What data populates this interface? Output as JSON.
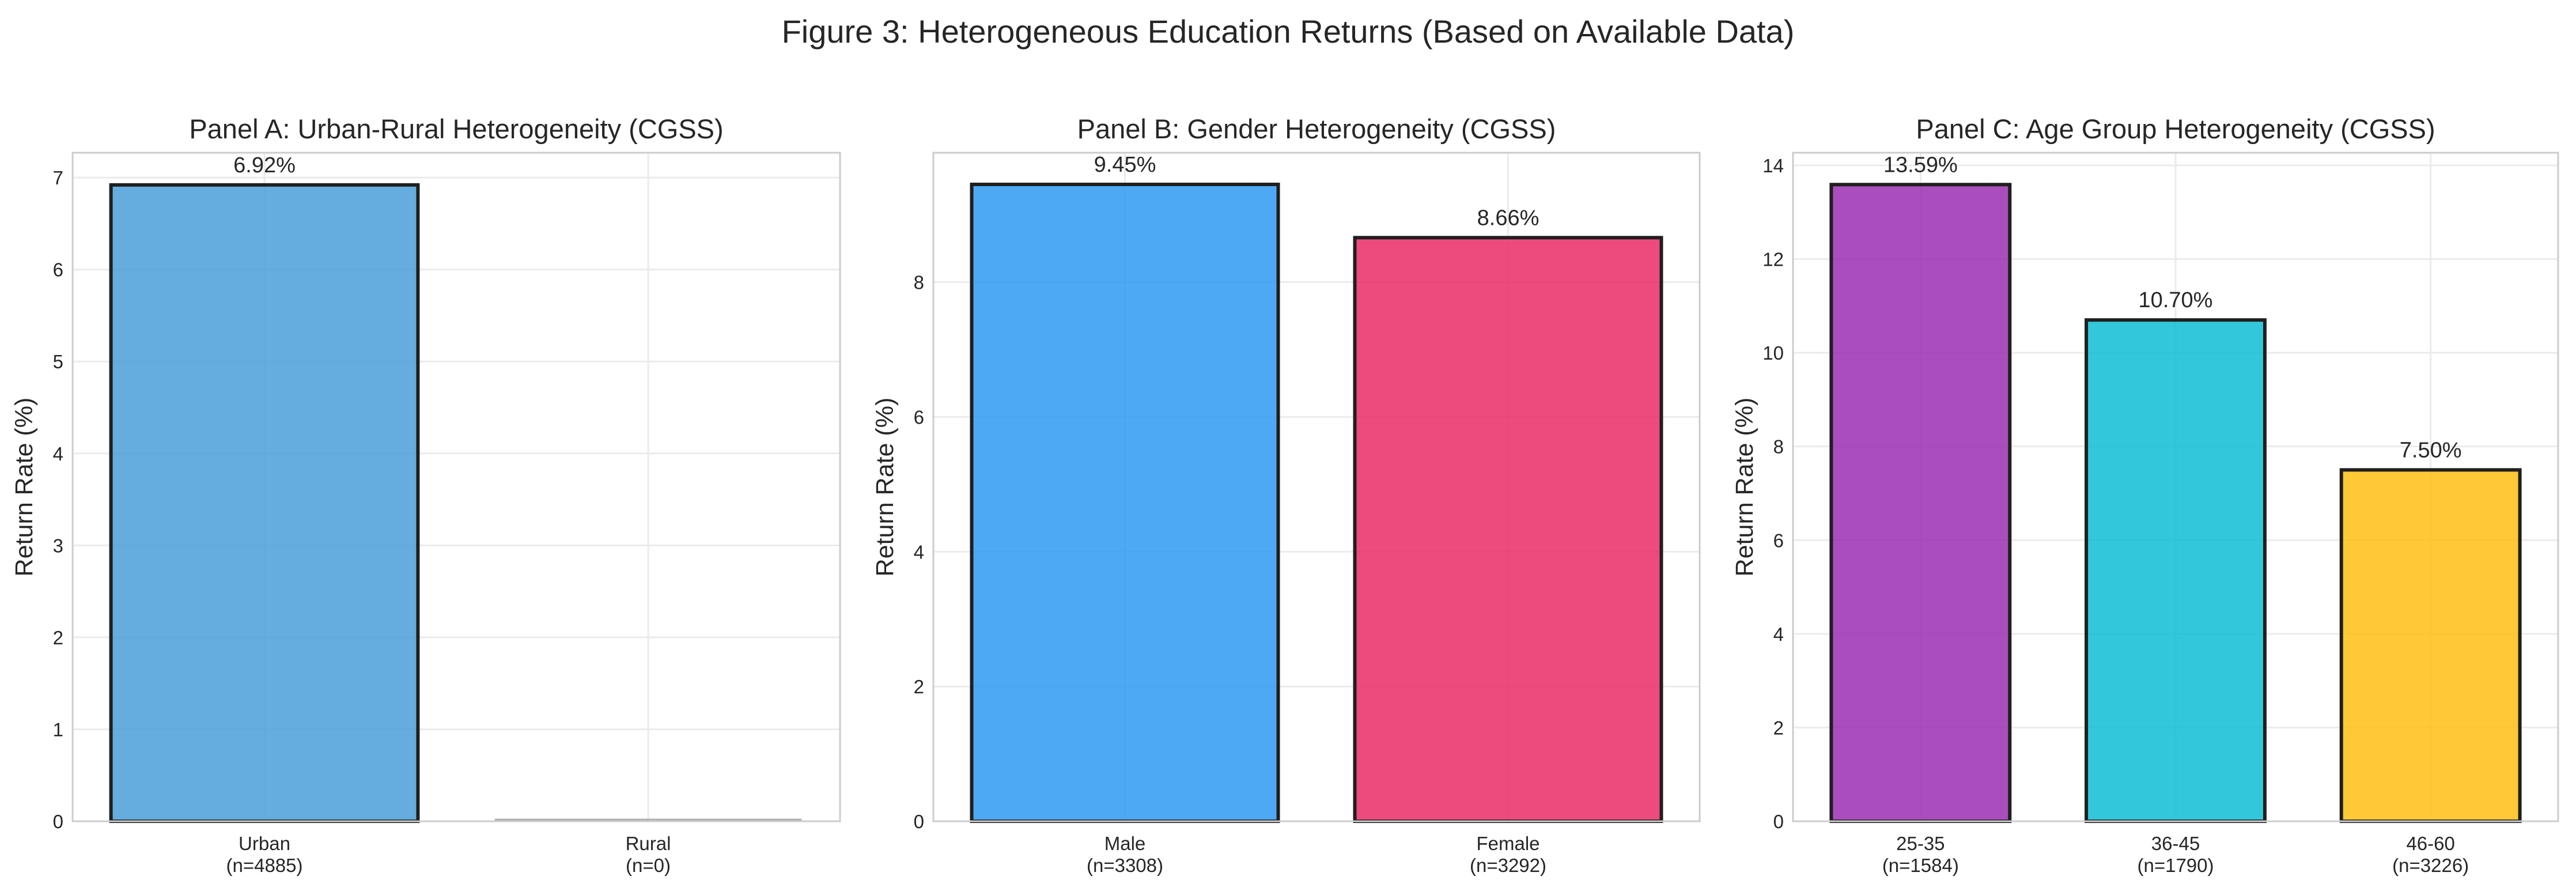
{
  "figure_title": "Figure 3: Heterogeneous Education Returns (Based on Available Data)",
  "chart_data": [
    {
      "type": "bar",
      "title": "Panel A: Urban-Rural Heterogeneity (CGSS)",
      "ylabel": "Return Rate (%)",
      "xlabel": "",
      "ylim": [
        0,
        7.27
      ],
      "yticks": [
        0,
        1,
        2,
        3,
        4,
        5,
        6,
        7
      ],
      "grid": true,
      "categories": [
        "Urban",
        "Rural"
      ],
      "sample_sizes": [
        "(n=4885)",
        "(n=0)"
      ],
      "values": [
        6.92,
        0
      ],
      "data_labels": [
        "6.92%",
        ""
      ],
      "colors": [
        "#4a9fd8",
        "#b0b0b0"
      ]
    },
    {
      "type": "bar",
      "title": "Panel B: Gender Heterogeneity (CGSS)",
      "ylabel": "Return Rate (%)",
      "xlabel": "",
      "ylim": [
        0,
        9.92
      ],
      "yticks": [
        0,
        2,
        4,
        6,
        8
      ],
      "grid": true,
      "categories": [
        "Male",
        "Female"
      ],
      "sample_sizes": [
        "(n=3308)",
        "(n=3292)"
      ],
      "values": [
        9.45,
        8.66
      ],
      "data_labels": [
        "9.45%",
        "8.66%"
      ],
      "colors": [
        "#2f9af2",
        "#ea2c66"
      ]
    },
    {
      "type": "bar",
      "title": "Panel C: Age Group Heterogeneity (CGSS)",
      "ylabel": "Return Rate (%)",
      "xlabel": "",
      "ylim": [
        0,
        14.27
      ],
      "yticks": [
        0,
        2,
        4,
        6,
        8,
        10,
        12,
        14
      ],
      "grid": true,
      "categories": [
        "25-35",
        "36-45",
        "46-60"
      ],
      "sample_sizes": [
        "(n=1584)",
        "(n=1790)",
        "(n=3226)"
      ],
      "values": [
        13.59,
        10.7,
        7.5
      ],
      "data_labels": [
        "13.59%",
        "10.70%",
        "7.50%"
      ],
      "colors": [
        "#9c2fb2",
        "#0ebdd3",
        "#ffbe14"
      ]
    }
  ]
}
